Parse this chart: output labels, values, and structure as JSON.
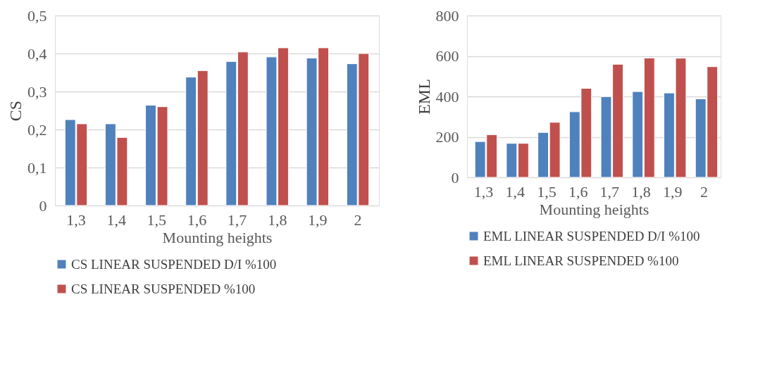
{
  "chart_data": [
    {
      "type": "bar",
      "xlabel": "Mounting heights",
      "ylabel": "CS",
      "categories": [
        "1,3",
        "1,4",
        "1,5",
        "1,6",
        "1,7",
        "1,8",
        "1,9",
        "2"
      ],
      "series": [
        {
          "name": "CS LINEAR SUSPENDED D/I %100",
          "color": "#4f81bd",
          "values": [
            0.226,
            0.215,
            0.264,
            0.338,
            0.379,
            0.391,
            0.388,
            0.373
          ]
        },
        {
          "name": "CS LINEAR SUSPENDED %100",
          "color": "#c0504d",
          "values": [
            0.215,
            0.179,
            0.26,
            0.355,
            0.404,
            0.415,
            0.415,
            0.4
          ]
        }
      ],
      "ylim": [
        0,
        0.5
      ],
      "yticks": [
        0,
        {
          "value": 0.1,
          "label": "0,1"
        },
        {
          "value": 0.2,
          "label": "0,2"
        },
        {
          "value": 0.3,
          "label": "0,3"
        },
        {
          "value": 0.4,
          "label": "0,4"
        },
        {
          "value": 0.5,
          "label": "0,5"
        }
      ],
      "grid": "y",
      "legend": "bottom"
    },
    {
      "type": "bar",
      "xlabel": "Mounting heights",
      "ylabel": "EML",
      "categories": [
        "1,3",
        "1,4",
        "1,5",
        "1,6",
        "1,7",
        "1,8",
        "1,9",
        "2"
      ],
      "series": [
        {
          "name": "EML LINEAR SUSPENDED D/I %100",
          "color": "#4f81bd",
          "values": [
            177,
            168,
            222,
            324,
            399,
            424,
            417,
            388
          ]
        },
        {
          "name": "EML LINEAR SUSPENDED %100",
          "color": "#c0504d",
          "values": [
            211,
            168,
            272,
            440,
            559,
            590,
            589,
            547
          ]
        }
      ],
      "ylim": [
        0,
        800
      ],
      "yticks": [
        0,
        200,
        400,
        600,
        800
      ],
      "grid": "y",
      "legend": "bottom"
    }
  ]
}
